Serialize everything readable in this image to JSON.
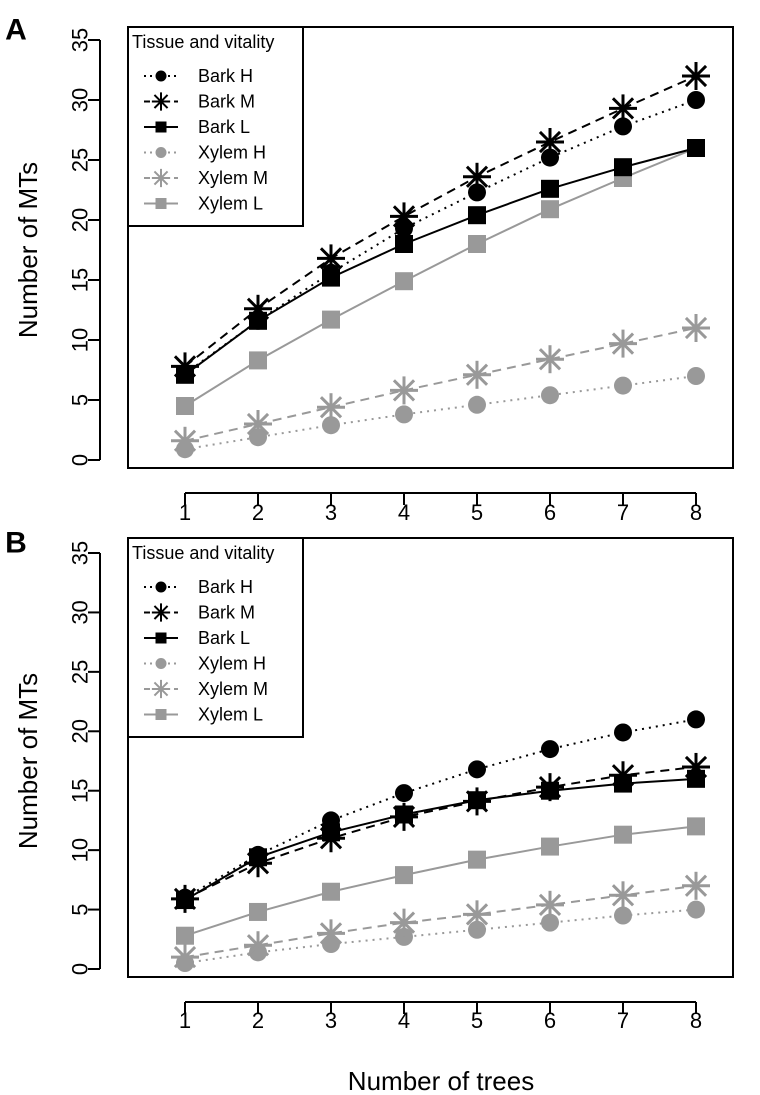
{
  "xlabel": "Number of trees",
  "chart_data": [
    {
      "type": "line",
      "panel_label": "A",
      "ylabel": "Number of MTs",
      "xlim": [
        1,
        8
      ],
      "ylim": [
        0,
        35
      ],
      "x": [
        1,
        2,
        3,
        4,
        5,
        6,
        7,
        8
      ],
      "yticks": [
        0,
        5,
        10,
        15,
        20,
        25,
        30,
        35
      ],
      "legend": {
        "title": "Tissue and vitality",
        "position": "top-left"
      },
      "series": [
        {
          "name": "Bark H",
          "values": [
            7.2,
            11.6,
            15.6,
            19.3,
            22.3,
            25.2,
            27.8,
            30.0
          ],
          "color": "#000000",
          "marker": "circle",
          "line": "dotted"
        },
        {
          "name": "Bark M",
          "values": [
            7.8,
            12.6,
            16.8,
            20.3,
            23.6,
            26.5,
            29.3,
            32.0
          ],
          "color": "#000000",
          "marker": "star",
          "line": "dashed"
        },
        {
          "name": "Bark L",
          "values": [
            7.1,
            11.6,
            15.2,
            18.0,
            20.4,
            22.6,
            24.4,
            26.0
          ],
          "color": "#000000",
          "marker": "square",
          "line": "solid"
        },
        {
          "name": "Xylem H",
          "values": [
            0.9,
            1.9,
            2.9,
            3.8,
            4.6,
            5.4,
            6.2,
            7.0
          ],
          "color": "#999999",
          "marker": "circle",
          "line": "dotted"
        },
        {
          "name": "Xylem M",
          "values": [
            1.6,
            3.0,
            4.4,
            5.8,
            7.1,
            8.4,
            9.7,
            11.0
          ],
          "color": "#999999",
          "marker": "star",
          "line": "dashed"
        },
        {
          "name": "Xylem L",
          "values": [
            4.5,
            8.3,
            11.7,
            14.9,
            18.0,
            20.9,
            23.5,
            26.0
          ],
          "color": "#999999",
          "marker": "square",
          "line": "solid"
        }
      ]
    },
    {
      "type": "line",
      "panel_label": "B",
      "ylabel": "Number of MTs",
      "xlim": [
        1,
        8
      ],
      "ylim": [
        0,
        35
      ],
      "x": [
        1,
        2,
        3,
        4,
        5,
        6,
        7,
        8
      ],
      "yticks": [
        0,
        5,
        10,
        15,
        20,
        25,
        30,
        35
      ],
      "legend": {
        "title": "Tissue and vitality",
        "position": "top-left"
      },
      "series": [
        {
          "name": "Bark H",
          "values": [
            6.0,
            9.6,
            12.5,
            14.8,
            16.8,
            18.5,
            19.9,
            21.0
          ],
          "color": "#000000",
          "marker": "circle",
          "line": "dotted"
        },
        {
          "name": "Bark M",
          "values": [
            5.9,
            8.9,
            11.0,
            12.8,
            14.1,
            15.3,
            16.3,
            17.0
          ],
          "color": "#000000",
          "marker": "star",
          "line": "dashed"
        },
        {
          "name": "Bark L",
          "values": [
            5.8,
            9.4,
            11.5,
            13.0,
            14.2,
            15.0,
            15.6,
            16.0
          ],
          "color": "#000000",
          "marker": "square",
          "line": "solid"
        },
        {
          "name": "Xylem H",
          "values": [
            0.5,
            1.4,
            2.1,
            2.7,
            3.3,
            3.9,
            4.5,
            5.0
          ],
          "color": "#999999",
          "marker": "circle",
          "line": "dotted"
        },
        {
          "name": "Xylem M",
          "values": [
            1.0,
            2.0,
            3.0,
            3.9,
            4.6,
            5.4,
            6.2,
            7.0
          ],
          "color": "#999999",
          "marker": "star",
          "line": "dashed"
        },
        {
          "name": "Xylem L",
          "values": [
            2.8,
            4.8,
            6.5,
            7.9,
            9.2,
            10.3,
            11.3,
            12.0
          ],
          "color": "#999999",
          "marker": "square",
          "line": "solid"
        }
      ]
    }
  ]
}
